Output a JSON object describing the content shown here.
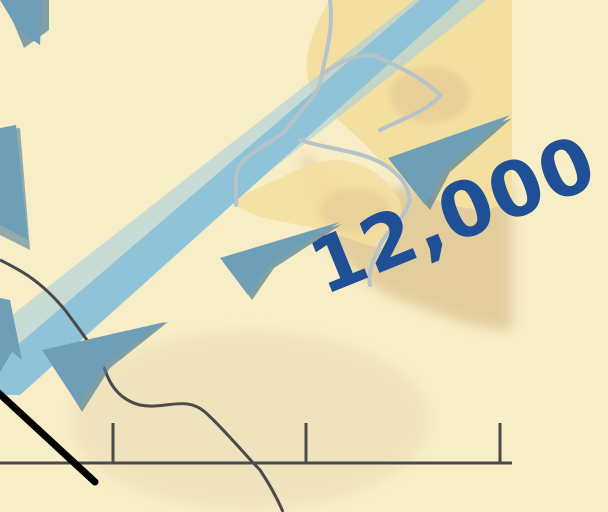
{
  "map": {
    "elevation_label": "12,000",
    "colors": {
      "background": "#f7edc6",
      "highland": "#f3dfa0",
      "highland_shadow": "#dfc694",
      "wind_band": "#8fc3d8",
      "wind_band_edge": "#a9d1e0",
      "wind_arrow": "#6f9fb6",
      "wind_arrow_shadow": "#4f7f98",
      "river": "#b6c3c9",
      "road": "#4a4a4a",
      "route": "#000000",
      "label": "#1f4f94"
    },
    "icons": [
      "wind-arrow-icon"
    ]
  }
}
